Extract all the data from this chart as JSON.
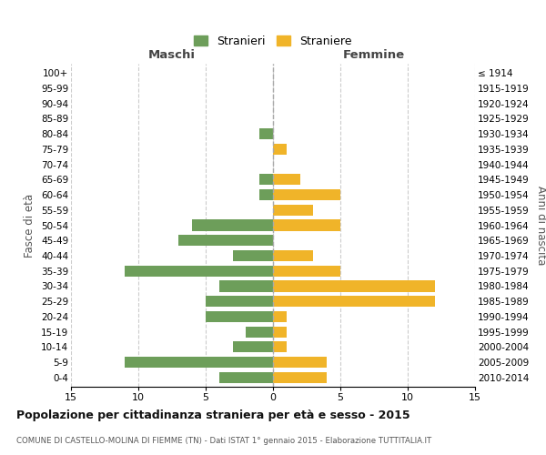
{
  "age_groups": [
    "100+",
    "95-99",
    "90-94",
    "85-89",
    "80-84",
    "75-79",
    "70-74",
    "65-69",
    "60-64",
    "55-59",
    "50-54",
    "45-49",
    "40-44",
    "35-39",
    "30-34",
    "25-29",
    "20-24",
    "15-19",
    "10-14",
    "5-9",
    "0-4"
  ],
  "birth_years": [
    "≤ 1914",
    "1915-1919",
    "1920-1924",
    "1925-1929",
    "1930-1934",
    "1935-1939",
    "1940-1944",
    "1945-1949",
    "1950-1954",
    "1955-1959",
    "1960-1964",
    "1965-1969",
    "1970-1974",
    "1975-1979",
    "1980-1984",
    "1985-1989",
    "1990-1994",
    "1995-1999",
    "2000-2004",
    "2005-2009",
    "2010-2014"
  ],
  "maschi": [
    0,
    0,
    0,
    0,
    1,
    0,
    0,
    1,
    1,
    0,
    6,
    7,
    3,
    11,
    4,
    5,
    5,
    2,
    3,
    11,
    4
  ],
  "femmine": [
    0,
    0,
    0,
    0,
    0,
    1,
    0,
    2,
    5,
    3,
    5,
    0,
    3,
    5,
    12,
    12,
    1,
    1,
    1,
    4,
    4
  ],
  "color_maschi": "#6d9e5a",
  "color_femmine": "#f0b429",
  "xlim": 15,
  "xlabel_left": "Maschi",
  "xlabel_right": "Femmine",
  "ylabel_left": "Fasce di età",
  "ylabel_right": "Anni di nascita",
  "legend_stranieri": "Stranieri",
  "legend_straniere": "Straniere",
  "title": "Popolazione per cittadinanza straniera per età e sesso - 2015",
  "subtitle": "COMUNE DI CASTELLO-MOLINA DI FIEMME (TN) - Dati ISTAT 1° gennaio 2015 - Elaborazione TUTTITALIA.IT",
  "background_color": "#ffffff",
  "grid_color": "#cccccc",
  "xticks": [
    -15,
    -10,
    -5,
    0,
    5,
    10,
    15
  ],
  "xtick_labels": [
    "15",
    "10",
    "5",
    "0",
    "5",
    "10",
    "15"
  ]
}
